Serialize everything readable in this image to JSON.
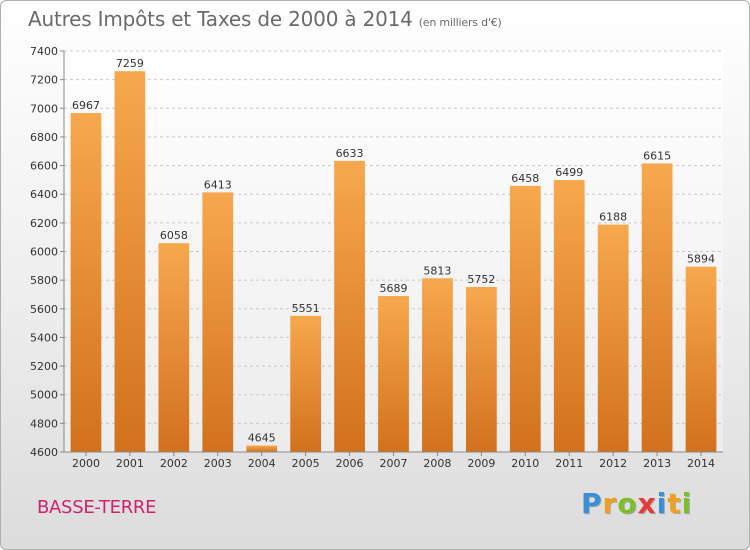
{
  "title": "Autres Impôts et Taxes de 2000 à 2014",
  "unit_note": "(en milliers d'€)",
  "location": "BASSE-TERRE",
  "logo": {
    "text": "Proxiti",
    "letters": [
      {
        "ch": "P",
        "color": "#3a8fd6"
      },
      {
        "ch": "r",
        "color": "#f0a020"
      },
      {
        "ch": "o",
        "color": "#7bbf2a"
      },
      {
        "ch": "x",
        "color": "#e83a3a"
      },
      {
        "ch": "i",
        "color": "#3a8fd6"
      },
      {
        "ch": "t",
        "color": "#f0a020"
      },
      {
        "ch": "i",
        "color": "#7bbf2a"
      }
    ]
  },
  "chart_data": {
    "type": "bar",
    "categories": [
      "2000",
      "2001",
      "2002",
      "2003",
      "2004",
      "2005",
      "2006",
      "2007",
      "2008",
      "2009",
      "2010",
      "2011",
      "2012",
      "2013",
      "2014"
    ],
    "values": [
      6967,
      7259,
      6058,
      6413,
      4645,
      5551,
      6633,
      5689,
      5813,
      5752,
      6458,
      6499,
      6188,
      6615,
      5894
    ],
    "ylim": [
      4600,
      7400
    ],
    "yticks": [
      4600,
      4800,
      5000,
      5200,
      5400,
      5600,
      5800,
      6000,
      6200,
      6400,
      6600,
      6800,
      7000,
      7200,
      7400
    ],
    "grid": true,
    "bar_color_top": "#f7a84d",
    "bar_color_bottom": "#d2711c"
  }
}
